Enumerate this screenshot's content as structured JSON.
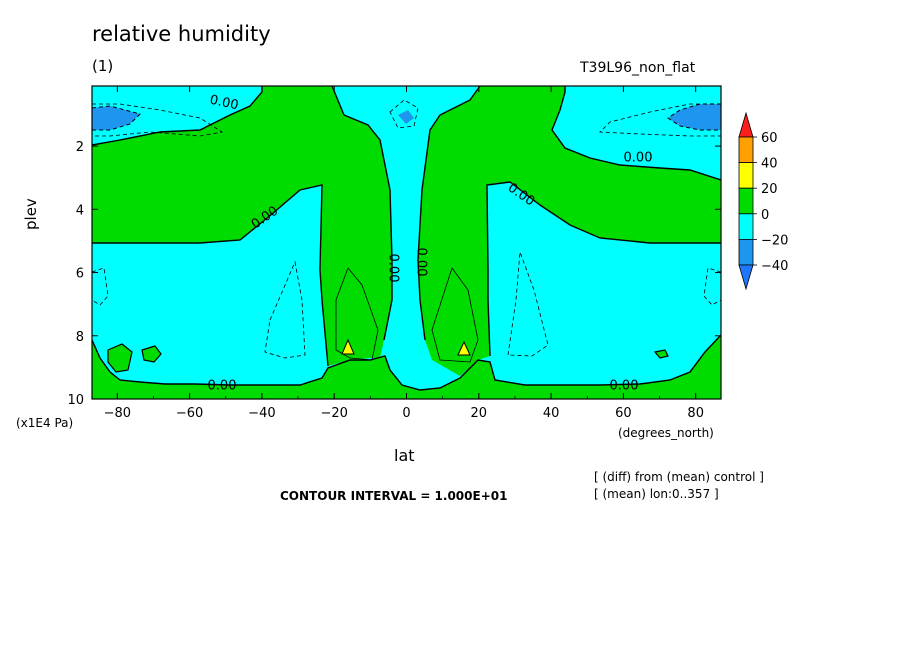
{
  "header": {
    "title": "relative humidity",
    "subtitle": "(1)",
    "run_id": "T39L96_non_flat"
  },
  "footer": {
    "contour_interval": "CONTOUR INTERVAL = 1.000E+01",
    "note_diff": "[ (diff) from (mean) control ]",
    "note_mean": "[ (mean) lon:0..357 ]"
  },
  "colors": {
    "level_lt_neg40": "#1e78ff",
    "level_neg40_neg20": "#1e96f0",
    "level_neg20_0": "#00ffff",
    "level_0_20": "#00dc00",
    "level_20_40": "#ffff00",
    "level_40_60": "#ffa000",
    "level_gt_60": "#ff1e1e"
  },
  "chart_data": {
    "type": "contour",
    "variable": "relative humidity",
    "xlabel": "lat",
    "x_unit": "(degrees_north)",
    "ylabel": "plev",
    "y_unit": "(x1E4 Pa)",
    "xlim": [
      -87,
      87
    ],
    "ylim": [
      10,
      0.1
    ],
    "x_ticks": [
      -80,
      -60,
      -40,
      -20,
      0,
      20,
      40,
      60,
      80
    ],
    "y_ticks": [
      2,
      4,
      6,
      8,
      10
    ],
    "contour_interval": 10,
    "colorbar_levels": [
      -40,
      -20,
      0,
      20,
      40,
      60
    ],
    "colorbar_label_texts": [
      "60",
      "40",
      "20",
      "0",
      "−20",
      "−40"
    ],
    "contour_labels": [
      "0.00",
      "0.00",
      "0.00",
      "0.00",
      "0.00",
      "0.00",
      "0.00",
      "0.00"
    ],
    "regions": [
      {
        "range": "0..20",
        "description": "green bands at surface, mid-latitudes upper troposphere and the tropical columns"
      },
      {
        "range": "-20..0",
        "description": "cyan areas over subtropics and polar mid troposphere"
      },
      {
        "range": "-40..-20",
        "description": "blue cores near plev 1 at both poles"
      },
      {
        "range": "20..40",
        "description": "small yellow spots near lat -17 and 17 at plev 8.3"
      }
    ]
  }
}
